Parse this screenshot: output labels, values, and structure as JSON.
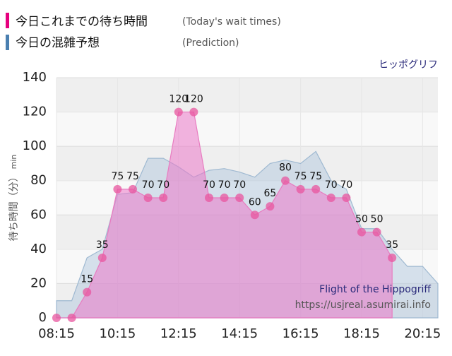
{
  "chart_data": {
    "type": "area",
    "title": "ヒッポグリフ",
    "ylabel": "待ち時間（分）",
    "ylabel_unit": "min",
    "annotations": [
      "Flight of the Hippogriff",
      "https://usjreal.asumirai.info"
    ],
    "xlim": [
      "08:15",
      "20:45"
    ],
    "xticks": [
      "08:15",
      "10:15",
      "12:15",
      "14:15",
      "16:15",
      "18:15",
      "20:15"
    ],
    "ylim": [
      0,
      140
    ],
    "yticks": [
      0,
      20,
      40,
      60,
      80,
      100,
      120,
      140
    ],
    "grid": true,
    "series": [
      {
        "name": "今日これまでの待ち時間",
        "name_note": "(Today's wait times)",
        "color": "#e8559f",
        "x": [
          "08:15",
          "08:45",
          "09:15",
          "09:45",
          "10:15",
          "10:45",
          "11:15",
          "11:45",
          "12:15",
          "12:45",
          "13:15",
          "13:45",
          "14:15",
          "14:45",
          "15:15",
          "15:45",
          "16:15",
          "16:45",
          "17:15",
          "17:45",
          "18:15",
          "18:45",
          "19:15"
        ],
        "values": [
          0,
          0,
          15,
          35,
          75,
          75,
          70,
          70,
          120,
          120,
          70,
          70,
          70,
          60,
          65,
          80,
          75,
          75,
          70,
          70,
          50,
          50,
          35
        ],
        "value_labels": [
          null,
          null,
          "15",
          "35",
          "75",
          "75",
          "70",
          "70",
          "120",
          "120",
          "70",
          "70",
          "70",
          "60",
          "65",
          "80",
          "75",
          "75",
          "70",
          "70",
          "50",
          "50",
          "35"
        ]
      },
      {
        "name": "今日の混雑予想",
        "name_note": "(Prediction)",
        "color": "#4a7fb0",
        "x": [
          "08:15",
          "08:45",
          "09:15",
          "09:45",
          "10:15",
          "10:45",
          "11:15",
          "11:45",
          "12:15",
          "12:45",
          "13:15",
          "13:45",
          "14:15",
          "14:45",
          "15:15",
          "15:45",
          "16:15",
          "16:45",
          "17:15",
          "17:45",
          "18:15",
          "18:45",
          "19:15",
          "19:45",
          "20:15",
          "20:45"
        ],
        "values": [
          10,
          10,
          35,
          40,
          72,
          73,
          93,
          93,
          88,
          82,
          86,
          87,
          85,
          82,
          90,
          92,
          90,
          97,
          80,
          75,
          52,
          52,
          40,
          30,
          30,
          20
        ]
      }
    ]
  }
}
